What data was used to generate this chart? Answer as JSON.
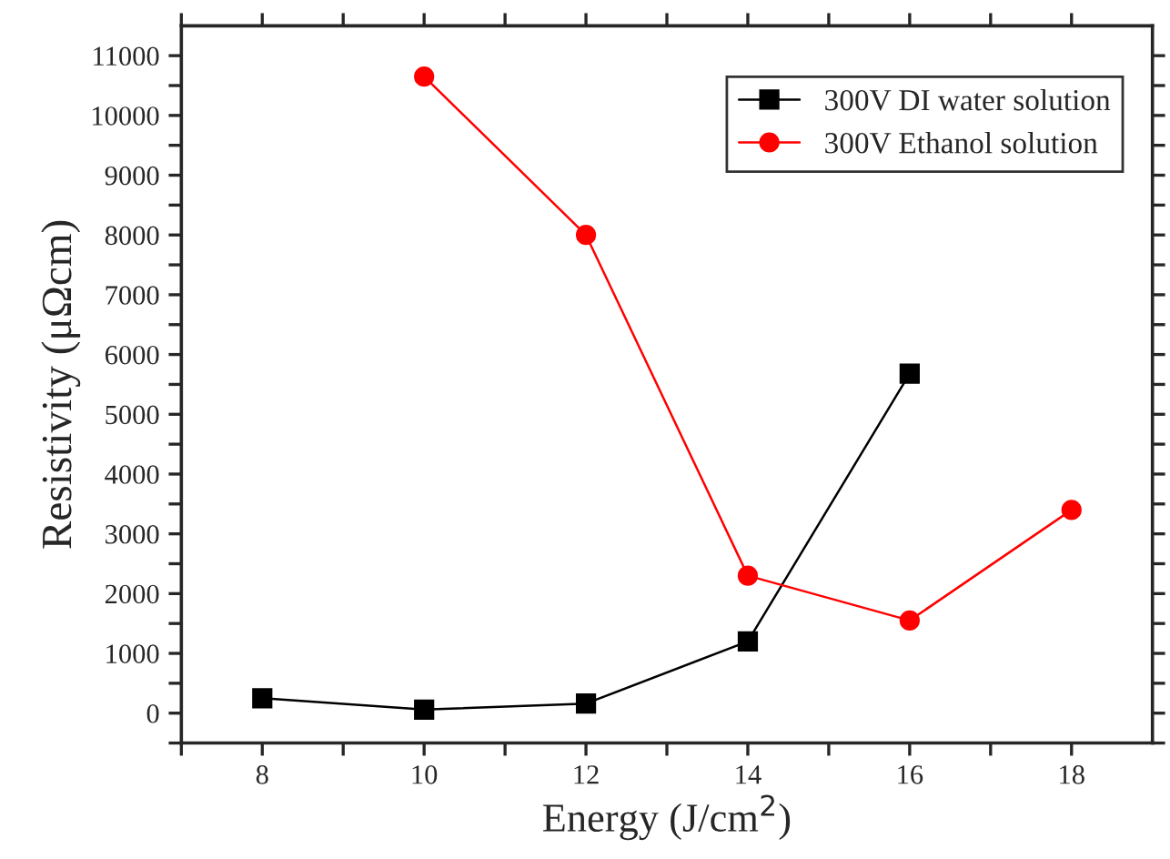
{
  "chart_data": {
    "type": "line",
    "xlabel": "Energy (J/cm$^{2}$)",
    "ylabel": "Resistivity (μΩcm)",
    "xlim": [
      7,
      19
    ],
    "ylim": [
      -500,
      11500
    ],
    "xticks": [
      {
        "value": 7,
        "label": null
      },
      8,
      {
        "value": 9,
        "label": null
      },
      10,
      {
        "value": 11,
        "label": null
      },
      12,
      {
        "value": 13,
        "label": null
      },
      14,
      {
        "value": 15,
        "label": null
      },
      16,
      {
        "value": 17,
        "label": null
      },
      18
    ],
    "yticks": [
      {
        "value": -500,
        "label": null
      },
      0,
      {
        "value": 500,
        "label": null
      },
      1000,
      {
        "value": 1500,
        "label": null
      },
      2000,
      {
        "value": 2500,
        "label": null
      },
      3000,
      {
        "value": 3500,
        "label": null
      },
      4000,
      {
        "value": 4500,
        "label": null
      },
      5000,
      {
        "value": 5500,
        "label": null
      },
      6000,
      {
        "value": 6500,
        "label": null
      },
      7000,
      {
        "value": 7500,
        "label": null
      },
      8000,
      {
        "value": 8500,
        "label": null
      },
      9000,
      {
        "value": 9500,
        "label": null
      },
      10000,
      {
        "value": 10500,
        "label": null
      },
      11000
    ],
    "grid": false,
    "legend": "top right",
    "line_style": "solid",
    "series": [
      {
        "name": "300V DI water solution",
        "color": "#000000",
        "marker": "square",
        "x": [
          8,
          10,
          12,
          14,
          16
        ],
        "values": [
          250,
          60,
          160,
          1200,
          5680
        ]
      },
      {
        "name": "300V Ethanol solution",
        "color": "#ff0000",
        "marker": "circle",
        "x": [
          10,
          12,
          14,
          16,
          18
        ],
        "values": [
          10650,
          8000,
          2300,
          1550,
          3400
        ]
      }
    ]
  }
}
